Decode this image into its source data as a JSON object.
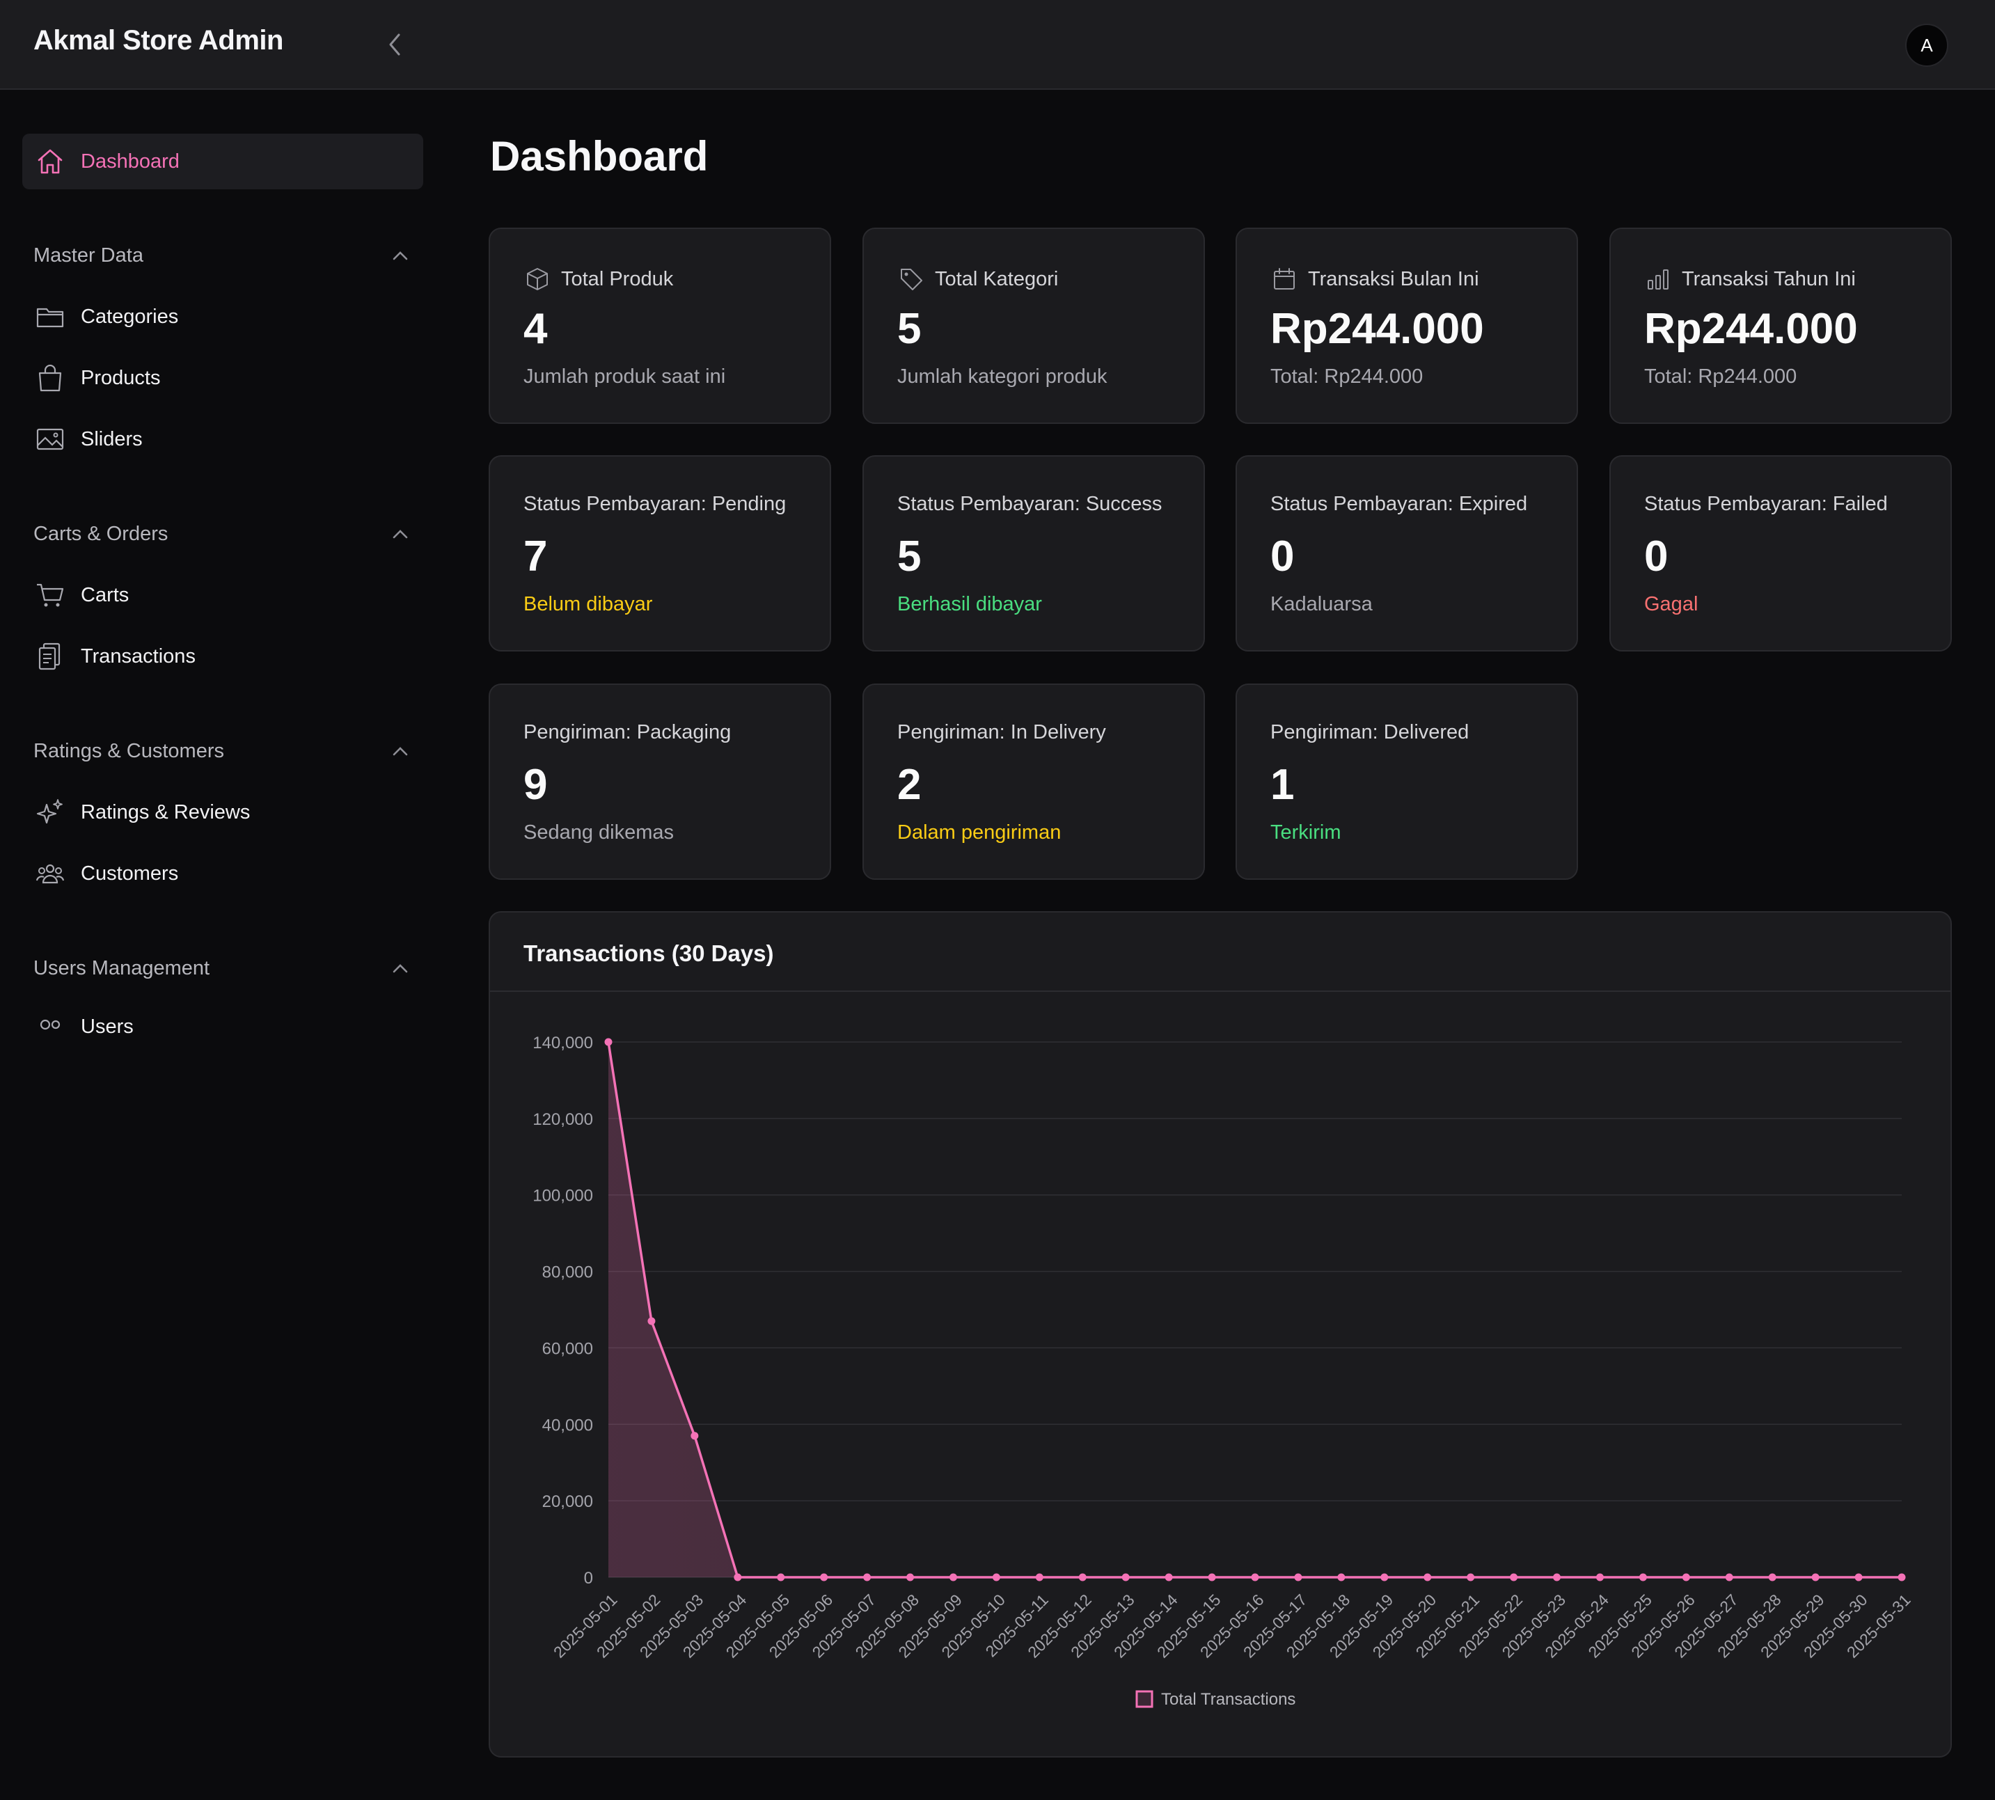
{
  "app": {
    "title": "Akmal Store Admin",
    "avatar_initial": "A"
  },
  "sidebar": {
    "dashboard": "Dashboard",
    "groups": [
      {
        "label": "Master Data",
        "items": [
          "Categories",
          "Products",
          "Sliders"
        ]
      },
      {
        "label": "Carts & Orders",
        "items": [
          "Carts",
          "Transactions"
        ]
      },
      {
        "label": "Ratings & Customers",
        "items": [
          "Ratings & Reviews",
          "Customers"
        ]
      },
      {
        "label": "Users Management",
        "items": [
          "Users"
        ]
      }
    ]
  },
  "page": {
    "title": "Dashboard"
  },
  "cards": [
    {
      "icon": "box-icon",
      "title": "Total Produk",
      "value": "4",
      "sub": "Jumlah produk saat ini"
    },
    {
      "icon": "tag-icon",
      "title": "Total Kategori",
      "value": "5",
      "sub": "Jumlah kategori produk"
    },
    {
      "icon": "calendar-icon",
      "title": "Transaksi Bulan Ini",
      "value": "Rp244.000",
      "sub": "Total: Rp244.000"
    },
    {
      "icon": "bar-chart-icon",
      "title": "Transaksi Tahun Ini",
      "value": "Rp244.000",
      "sub": "Total: Rp244.000"
    },
    {
      "title": "Status Pembayaran: Pending",
      "value": "7",
      "sub": "Belum dibayar",
      "sub_color": "#facc15"
    },
    {
      "title": "Status Pembayaran: Success",
      "value": "5",
      "sub": "Berhasil dibayar",
      "sub_color": "#4ade80"
    },
    {
      "title": "Status Pembayaran: Expired",
      "value": "0",
      "sub": "Kadaluarsa"
    },
    {
      "title": "Status Pembayaran: Failed",
      "value": "0",
      "sub": "Gagal",
      "sub_color": "#f87171"
    },
    {
      "title": "Pengiriman: Packaging",
      "value": "9",
      "sub": "Sedang dikemas"
    },
    {
      "title": "Pengiriman: In Delivery",
      "value": "2",
      "sub": "Dalam pengiriman",
      "sub_color": "#facc15"
    },
    {
      "title": "Pengiriman: Delivered",
      "value": "1",
      "sub": "Terkirim",
      "sub_color": "#4ade80"
    }
  ],
  "chart": {
    "title": "Transactions (30 Days)"
  },
  "colors": {
    "accent": "#f472b6",
    "card_bg": "#1b1b1e",
    "page_bg": "#0b0b0d"
  },
  "chart_data": {
    "type": "line",
    "title": "Transactions (30 Days)",
    "x": [
      "2025-05-01",
      "2025-05-02",
      "2025-05-03",
      "2025-05-04",
      "2025-05-05",
      "2025-05-06",
      "2025-05-07",
      "2025-05-08",
      "2025-05-09",
      "2025-05-10",
      "2025-05-11",
      "2025-05-12",
      "2025-05-13",
      "2025-05-14",
      "2025-05-15",
      "2025-05-16",
      "2025-05-17",
      "2025-05-18",
      "2025-05-19",
      "2025-05-20",
      "2025-05-21",
      "2025-05-22",
      "2025-05-23",
      "2025-05-24",
      "2025-05-25",
      "2025-05-26",
      "2025-05-27",
      "2025-05-28",
      "2025-05-29",
      "2025-05-30",
      "2025-05-31"
    ],
    "series": [
      {
        "name": "Total Transactions",
        "color": "#f472b6",
        "values": [
          140000,
          67000,
          37000,
          0,
          0,
          0,
          0,
          0,
          0,
          0,
          0,
          0,
          0,
          0,
          0,
          0,
          0,
          0,
          0,
          0,
          0,
          0,
          0,
          0,
          0,
          0,
          0,
          0,
          0,
          0,
          0
        ]
      }
    ],
    "yticks": [
      "0",
      "20,000",
      "40,000",
      "60,000",
      "80,000",
      "100,000",
      "120,000",
      "140,000"
    ],
    "ylim": [
      0,
      140000
    ],
    "grid": true,
    "fill": true,
    "legend": "bottom-center"
  }
}
